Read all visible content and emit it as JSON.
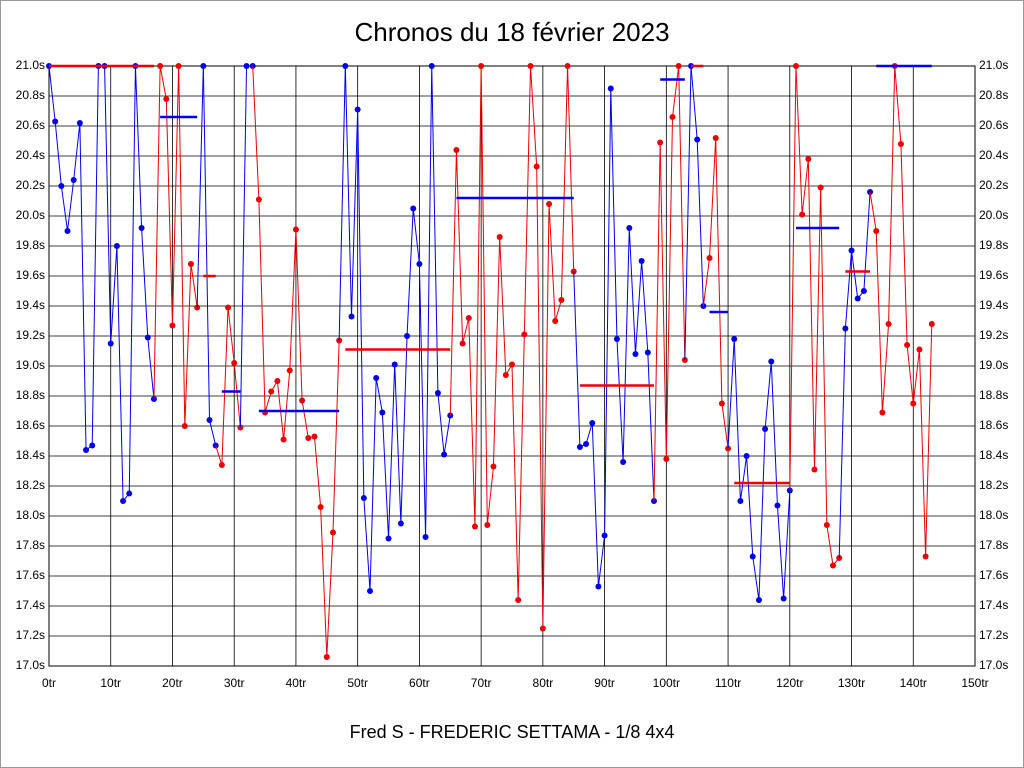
{
  "chart_data": {
    "type": "line",
    "title": "Chronos du 18 février 2023",
    "x_label": "Fred S - FREDERIC SETTAMA - 1/8 4x4",
    "xlim": [
      0,
      150
    ],
    "xticks": [
      {
        "value": 0,
        "label": "0tr"
      },
      {
        "value": 10,
        "label": "10tr"
      },
      {
        "value": 20,
        "label": "20tr"
      },
      {
        "value": 30,
        "label": "30tr"
      },
      {
        "value": 40,
        "label": "40tr"
      },
      {
        "value": 50,
        "label": "50tr"
      },
      {
        "value": 60,
        "label": "60tr"
      },
      {
        "value": 70,
        "label": "70tr"
      },
      {
        "value": 80,
        "label": "80tr"
      },
      {
        "value": 90,
        "label": "90tr"
      },
      {
        "value": 100,
        "label": "100tr"
      },
      {
        "value": 110,
        "label": "110tr"
      },
      {
        "value": 120,
        "label": "120tr"
      },
      {
        "value": 130,
        "label": "130tr"
      },
      {
        "value": 140,
        "label": "140tr"
      },
      {
        "value": 150,
        "label": "150tr"
      }
    ],
    "ylim": [
      17.0,
      21.0
    ],
    "yticks": [
      {
        "value": 17.0,
        "label": "17.0s"
      },
      {
        "value": 17.2,
        "label": "17.2s"
      },
      {
        "value": 17.4,
        "label": "17.4s"
      },
      {
        "value": 17.6,
        "label": "17.6s"
      },
      {
        "value": 17.8,
        "label": "17.8s"
      },
      {
        "value": 18.0,
        "label": "18.0s"
      },
      {
        "value": 18.2,
        "label": "18.2s"
      },
      {
        "value": 18.4,
        "label": "18.4s"
      },
      {
        "value": 18.6,
        "label": "18.6s"
      },
      {
        "value": 18.8,
        "label": "18.8s"
      },
      {
        "value": 19.0,
        "label": "19.0s"
      },
      {
        "value": 19.2,
        "label": "19.2s"
      },
      {
        "value": 19.4,
        "label": "19.4s"
      },
      {
        "value": 19.6,
        "label": "19.6s"
      },
      {
        "value": 19.8,
        "label": "19.8s"
      },
      {
        "value": 20.0,
        "label": "20.0s"
      },
      {
        "value": 20.2,
        "label": "20.2s"
      },
      {
        "value": 20.4,
        "label": "20.4s"
      },
      {
        "value": 20.6,
        "label": "20.6s"
      },
      {
        "value": 20.8,
        "label": "20.8s"
      },
      {
        "value": 21.0,
        "label": "21.0s"
      }
    ],
    "grid": true,
    "stints": [
      {
        "color": "#0000ee",
        "start": 0,
        "values": [
          21.0,
          20.63,
          20.2,
          19.9,
          20.24,
          20.62,
          18.44,
          18.47,
          21.0,
          21.0,
          19.15,
          19.8,
          18.1,
          18.15,
          21.0,
          19.92,
          19.19,
          18.78
        ]
      },
      {
        "color": "#ee0000",
        "start": 18,
        "values": [
          21.0,
          20.78,
          19.27,
          21.0,
          18.6,
          19.68,
          19.39
        ]
      },
      {
        "color": "#0000ee",
        "start": 25,
        "values": [
          21.0,
          18.64,
          18.47
        ]
      },
      {
        "color": "#ee0000",
        "start": 28,
        "values": [
          18.34,
          19.39,
          19.02,
          18.59
        ]
      },
      {
        "color": "#0000ee",
        "start": 32,
        "values": [
          21.0,
          21.0
        ]
      },
      {
        "color": "#ee0000",
        "start": 34,
        "values": [
          20.11,
          18.69,
          18.83,
          18.9,
          18.51,
          18.97,
          19.91,
          18.77,
          18.52,
          18.53,
          18.06,
          17.06,
          17.89,
          19.17
        ]
      },
      {
        "color": "#0000ee",
        "start": 48,
        "values": [
          21.0,
          19.33,
          20.71,
          18.12,
          17.5,
          18.92,
          18.69,
          17.85,
          19.01,
          17.95,
          19.2,
          20.05,
          19.68,
          17.86,
          21.0,
          18.82,
          18.41,
          18.67
        ]
      },
      {
        "color": "#ee0000",
        "start": 66,
        "values": [
          20.44,
          19.15,
          19.32,
          17.93,
          21.0,
          17.94,
          18.33,
          19.86,
          18.94,
          19.01,
          17.44,
          19.21,
          21.0,
          20.33,
          17.25,
          20.08,
          19.3,
          19.44,
          21.0,
          19.63
        ]
      },
      {
        "color": "#0000ee",
        "start": 86,
        "values": [
          18.46,
          18.48,
          18.62,
          17.53,
          17.87,
          20.85,
          19.18,
          18.36,
          19.92,
          19.08,
          19.7,
          19.09,
          18.1
        ]
      },
      {
        "color": "#ee0000",
        "start": 99,
        "values": [
          20.49,
          18.38,
          20.66,
          21.0,
          19.04
        ]
      },
      {
        "color": "#0000ee",
        "start": 104,
        "values": [
          21.0,
          20.51,
          19.4
        ]
      },
      {
        "color": "#ee0000",
        "start": 107,
        "values": [
          19.72,
          20.52,
          18.75,
          18.45
        ]
      },
      {
        "color": "#0000ee",
        "start": 111,
        "values": [
          19.18,
          18.1,
          18.4,
          17.73,
          17.44,
          18.58,
          19.03,
          18.07,
          17.45,
          18.17
        ]
      },
      {
        "color": "#ee0000",
        "start": 121,
        "values": [
          21.0,
          20.01,
          20.38,
          18.31,
          20.19,
          17.94,
          17.67,
          17.72
        ]
      },
      {
        "color": "#0000ee",
        "start": 129,
        "values": [
          19.25,
          19.77,
          19.45,
          19.5,
          20.16
        ]
      },
      {
        "color": "#ee0000",
        "start": 134,
        "values": [
          19.9,
          18.69,
          19.28,
          21.0,
          20.48,
          19.14,
          18.75,
          19.11,
          17.73,
          19.28
        ]
      }
    ],
    "averages": [
      {
        "color": "#ee0000",
        "from": 0,
        "to": 17,
        "value": 21.0
      },
      {
        "color": "#0000ee",
        "from": 18,
        "to": 24,
        "value": 20.66
      },
      {
        "color": "#ee0000",
        "from": 25,
        "to": 27,
        "value": 19.6
      },
      {
        "color": "#0000ee",
        "from": 28,
        "to": 31,
        "value": 18.83
      },
      {
        "color": "#0000ee",
        "from": 34,
        "to": 47,
        "value": 18.7
      },
      {
        "color": "#ee0000",
        "from": 48,
        "to": 65,
        "value": 19.11
      },
      {
        "color": "#0000ee",
        "from": 66,
        "to": 85,
        "value": 20.12
      },
      {
        "color": "#ee0000",
        "from": 86,
        "to": 98,
        "value": 18.87
      },
      {
        "color": "#0000ee",
        "from": 99,
        "to": 103,
        "value": 20.91
      },
      {
        "color": "#ee0000",
        "from": 104,
        "to": 106,
        "value": 21.0
      },
      {
        "color": "#0000ee",
        "from": 107,
        "to": 110,
        "value": 19.36
      },
      {
        "color": "#ee0000",
        "from": 111,
        "to": 120,
        "value": 18.22
      },
      {
        "color": "#0000ee",
        "from": 121,
        "to": 128,
        "value": 19.92
      },
      {
        "color": "#ee0000",
        "from": 129,
        "to": 133,
        "value": 19.63
      },
      {
        "color": "#0000ee",
        "from": 134,
        "to": 143,
        "value": 21.0
      }
    ]
  }
}
